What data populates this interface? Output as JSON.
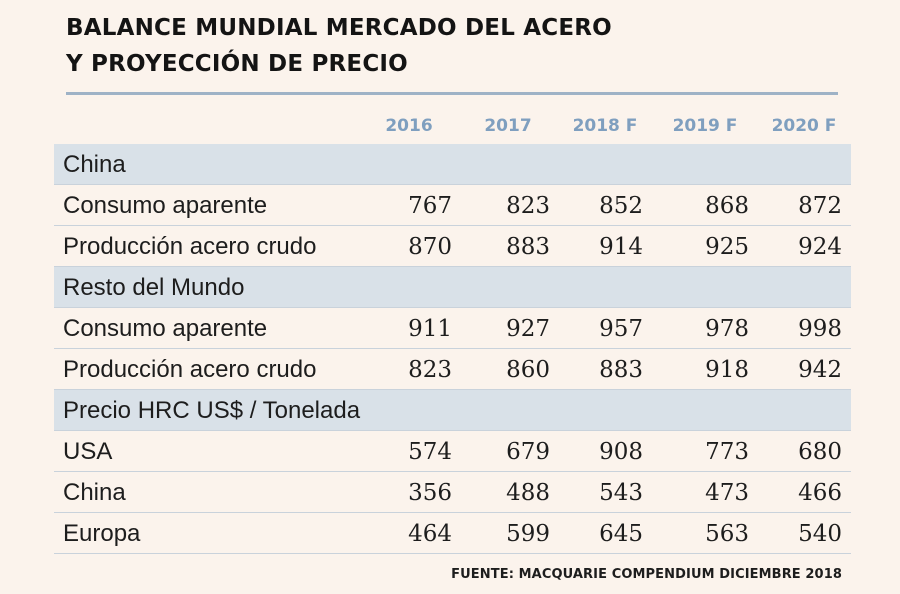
{
  "title_line1": "BALANCE MUNDIAL MERCADO DEL ACERO",
  "title_line2": "Y PROYECCIÓN DE PRECIO",
  "source": "FUENTE: MACQUARIE COMPENDIUM DICIEMBRE 2018",
  "chart_data": {
    "type": "table",
    "columns": [
      "2016",
      "2017",
      "2018 F",
      "2019 F",
      "2020 F"
    ],
    "sections": [
      {
        "name": "China",
        "rows": [
          {
            "label": "Consumo aparente",
            "values": [
              767,
              823,
              852,
              868,
              872
            ]
          },
          {
            "label": "Producción acero crudo",
            "values": [
              870,
              883,
              914,
              925,
              924
            ]
          }
        ]
      },
      {
        "name": "Resto del Mundo",
        "rows": [
          {
            "label": "Consumo aparente",
            "values": [
              911,
              927,
              957,
              978,
              998
            ]
          },
          {
            "label": "Producción acero crudo",
            "values": [
              823,
              860,
              883,
              918,
              942
            ]
          }
        ]
      },
      {
        "name": "Precio HRC US$ / Tonelada",
        "rows": [
          {
            "label": "USA",
            "values": [
              574,
              679,
              908,
              773,
              680
            ]
          },
          {
            "label": "China",
            "values": [
              356,
              488,
              543,
              473,
              466
            ]
          },
          {
            "label": "Europa",
            "values": [
              464,
              599,
              645,
              563,
              540
            ]
          }
        ]
      }
    ]
  }
}
